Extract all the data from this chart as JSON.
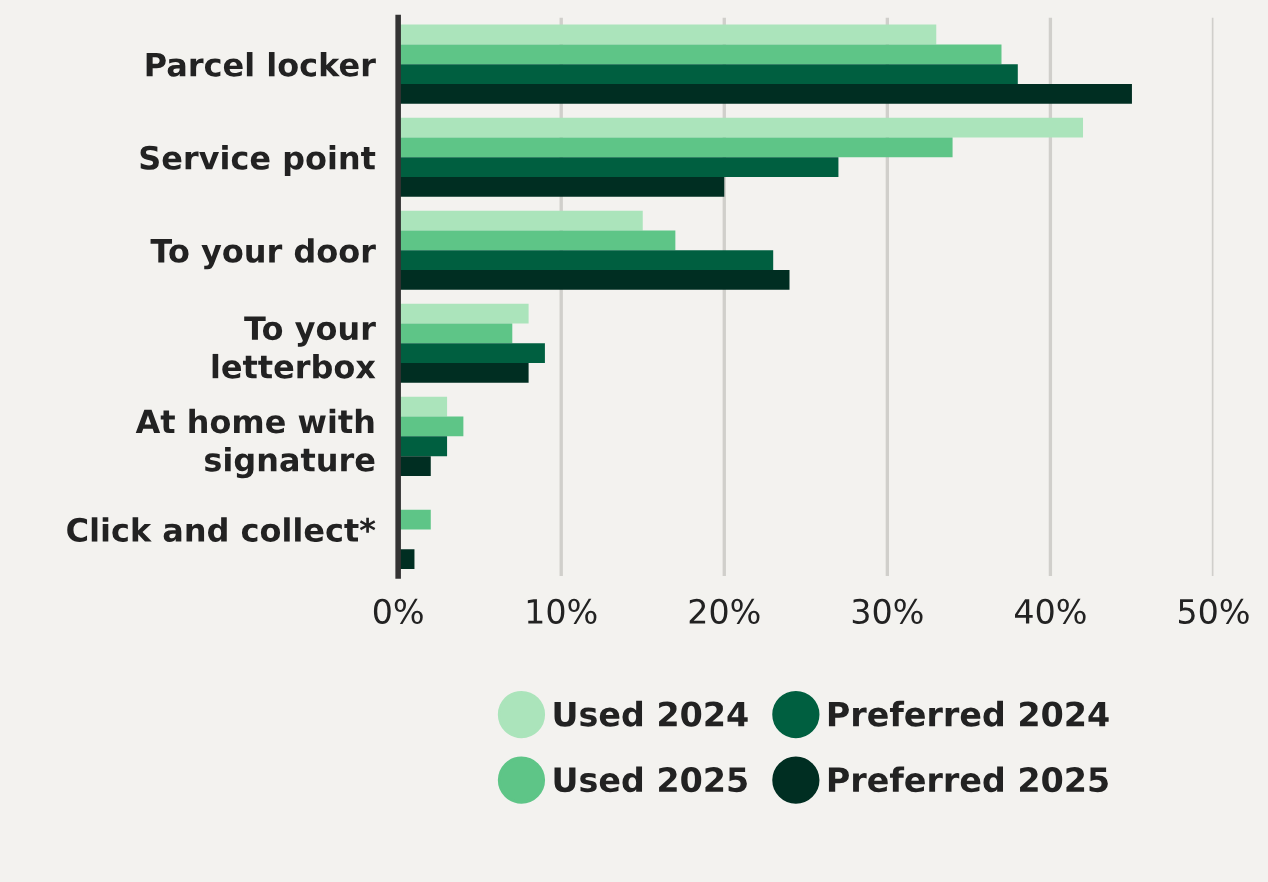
{
  "chart_data": {
    "type": "bar",
    "orientation": "horizontal",
    "categories": [
      "Parcel locker",
      "Service point",
      "To your door",
      "To your\nletterbox",
      "At home with\nsignature",
      "Click and collect*"
    ],
    "series": [
      {
        "name": "Used 2024",
        "color": "#abe4bb",
        "values": [
          33,
          42,
          15,
          8,
          3,
          null
        ]
      },
      {
        "name": "Used 2025",
        "color": "#5ec587",
        "values": [
          37,
          34,
          17,
          7,
          4,
          2
        ]
      },
      {
        "name": "Preferred 2024",
        "color": "#005f40",
        "values": [
          38,
          27,
          23,
          9,
          3,
          null
        ]
      },
      {
        "name": "Preferred 2025",
        "color": "#002e22",
        "values": [
          45,
          20,
          24,
          8,
          2,
          1
        ]
      }
    ],
    "xlim": [
      0,
      50
    ],
    "xticks": [
      {
        "value": 0,
        "label": "0%"
      },
      {
        "value": 10,
        "label": "10%"
      },
      {
        "value": 20,
        "label": "20%"
      },
      {
        "value": 30,
        "label": "30%"
      },
      {
        "value": 40,
        "label": "40%"
      },
      {
        "value": 50,
        "label": "50%"
      }
    ],
    "grid": "x",
    "legend": "bottom"
  }
}
